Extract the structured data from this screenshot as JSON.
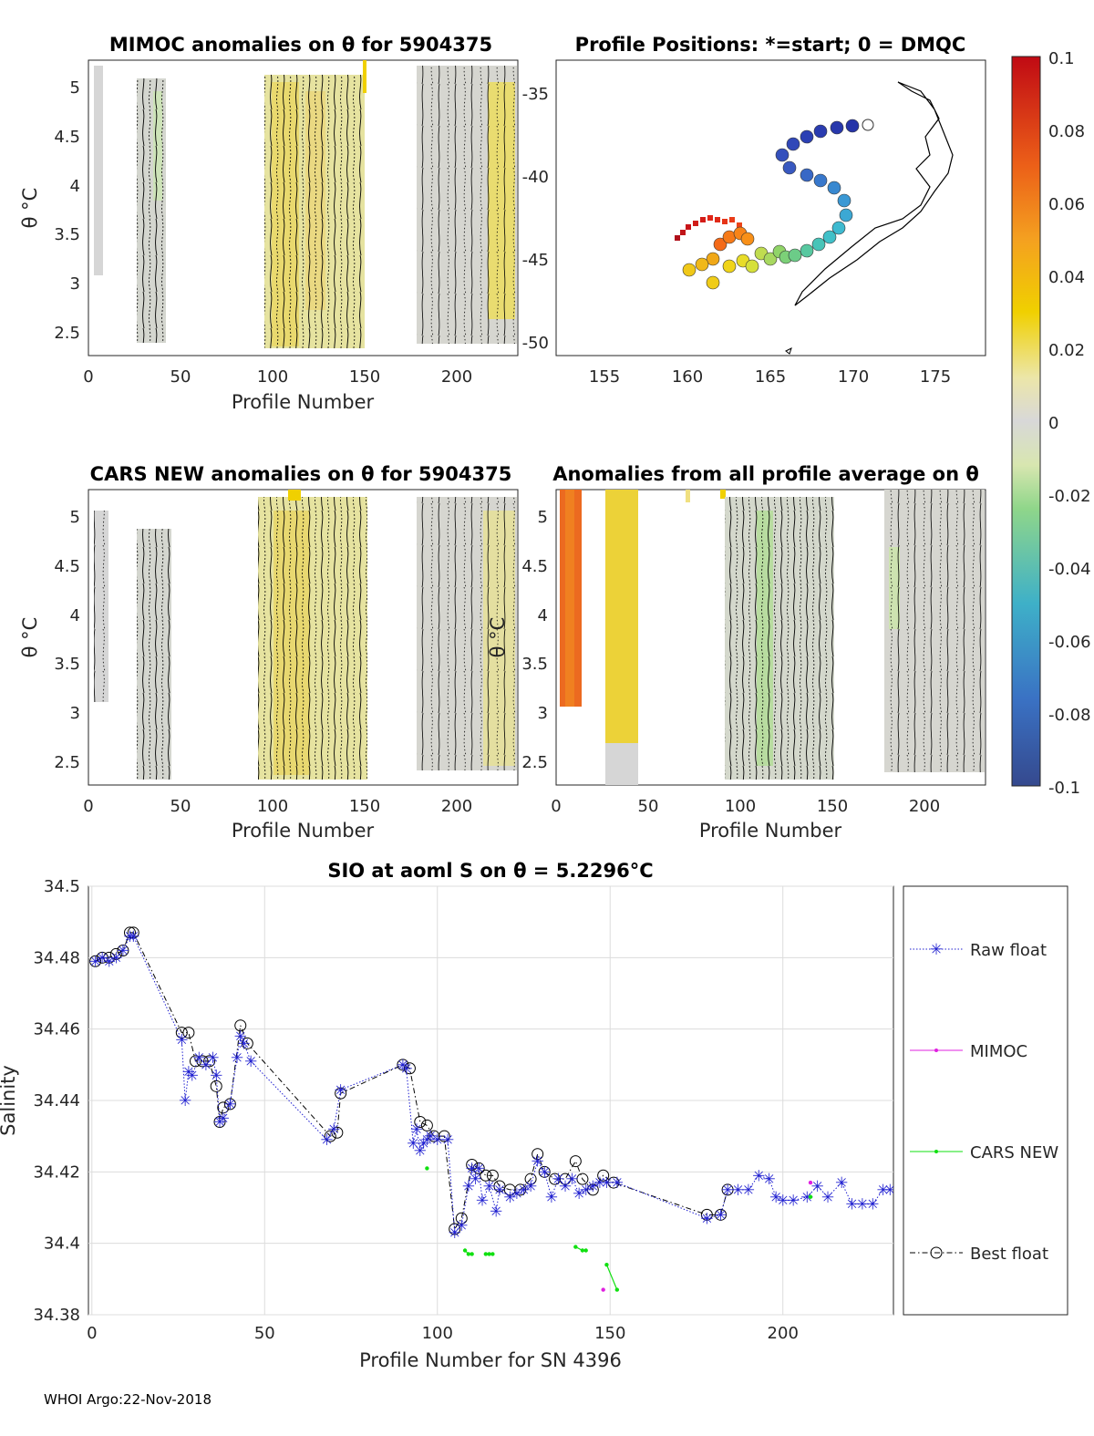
{
  "footer": "WHOI Argo:22-Nov-2018",
  "panels": {
    "mimoc": {
      "title": "MIMOC anomalies on θ  for 5904375",
      "ylabel": "θ °C",
      "xlabel": "Profile Number",
      "xticks": [
        "0",
        "50",
        "100",
        "150",
        "200"
      ],
      "yticks": [
        "5",
        "4.5",
        "4",
        "3.5",
        "3",
        "2.5"
      ]
    },
    "map": {
      "title": "Profile Positions: *=start; 0 = DMQC",
      "xticks": [
        "155",
        "160",
        "165",
        "170",
        "175"
      ],
      "yticks": [
        "-35",
        "-40",
        "-45",
        "-50"
      ]
    },
    "cars": {
      "title": "CARS NEW anomalies on θ for 5904375",
      "ylabel": "θ °C",
      "xlabel": "Profile Number",
      "xticks": [
        "0",
        "50",
        "100",
        "150",
        "200"
      ],
      "yticks": [
        "5",
        "4.5",
        "4",
        "3.5",
        "3",
        "2.5"
      ]
    },
    "avg": {
      "title": "Anomalies from all profile average on θ",
      "ylabel": "θ °C",
      "xlabel": "Profile Number",
      "xticks": [
        "0",
        "50",
        "100",
        "150",
        "200"
      ],
      "yticks": [
        "5",
        "4.5",
        "4",
        "3.5",
        "3",
        "2.5"
      ]
    },
    "colorbar": {
      "ticks": [
        "0.1",
        "0.08",
        "0.06",
        "0.04",
        "0.02",
        "0",
        "-0.02",
        "-0.04",
        "-0.06",
        "-0.08",
        "-0.1"
      ]
    }
  },
  "colors": {
    "raw": "#1f1fd0",
    "mimoc": "#e020e0",
    "cars": "#10e010",
    "best": "#000000"
  },
  "chart_data": {
    "type": "line",
    "title": "SIO at aoml S on θ = 5.2296°C",
    "xlabel": "Profile Number for SN 4396",
    "ylabel": "Salinity",
    "xlim": [
      -1,
      232
    ],
    "ylim": [
      34.38,
      34.5
    ],
    "xticks": [
      0,
      50,
      100,
      150,
      200
    ],
    "yticks": [
      34.38,
      34.4,
      34.42,
      34.44,
      34.46,
      34.48,
      34.5
    ],
    "ytick_labels": [
      "34.38",
      "34.4",
      "34.42",
      "34.44",
      "34.46",
      "34.48",
      "34.5"
    ],
    "legend": [
      "Raw float",
      "MIMOC",
      "CARS NEW",
      "Best float"
    ],
    "legend_position": "right, outside",
    "series": [
      {
        "name": "Raw float",
        "x": [
          1,
          3,
          5,
          7,
          9,
          11,
          12,
          26,
          27,
          28,
          29,
          31,
          33,
          35,
          36,
          37,
          38,
          40,
          42,
          43,
          44,
          46,
          68,
          70,
          72,
          90,
          91,
          93,
          94,
          95,
          96,
          97,
          98,
          100,
          103,
          105,
          107,
          109,
          110,
          111,
          112,
          113,
          115,
          117,
          118,
          121,
          123,
          125,
          127,
          129,
          131,
          133,
          135,
          137,
          139,
          141,
          143,
          145,
          147,
          149,
          152,
          178,
          182,
          184,
          187,
          190,
          193,
          196,
          198,
          200,
          203,
          207,
          210,
          213,
          217,
          220,
          223,
          226,
          229,
          231
        ],
        "values": [
          34.479,
          34.48,
          34.479,
          34.48,
          34.482,
          34.486,
          34.486,
          34.457,
          34.44,
          34.448,
          34.447,
          34.452,
          34.45,
          34.452,
          34.447,
          34.434,
          34.435,
          34.439,
          34.452,
          34.458,
          34.456,
          34.451,
          34.429,
          34.432,
          34.443,
          34.45,
          34.449,
          34.428,
          34.432,
          34.426,
          34.428,
          34.429,
          34.43,
          34.429,
          34.429,
          34.403,
          34.405,
          34.416,
          34.421,
          34.418,
          34.421,
          34.412,
          34.416,
          34.409,
          34.415,
          34.413,
          34.414,
          34.415,
          34.416,
          34.423,
          34.42,
          34.413,
          34.418,
          34.416,
          34.418,
          34.414,
          34.415,
          34.416,
          34.417,
          34.417,
          34.417,
          34.407,
          34.408,
          34.415,
          34.415,
          34.415,
          34.419,
          34.418,
          34.413,
          34.412,
          34.412,
          34.413,
          34.416,
          34.413,
          34.417,
          34.411,
          34.411,
          34.411,
          34.415,
          34.415
        ]
      },
      {
        "name": "MIMOC",
        "x": [
          148,
          208
        ],
        "values": [
          34.387,
          34.417
        ]
      },
      {
        "name": "CARS NEW",
        "segments": [
          {
            "x": [
              97
            ],
            "values": [
              34.421
            ]
          },
          {
            "x": [
              108,
              109,
              110
            ],
            "values": [
              34.398,
              34.397,
              34.397
            ]
          },
          {
            "x": [
              114,
              115,
              116
            ],
            "values": [
              34.397,
              34.397,
              34.397
            ]
          },
          {
            "x": [
              140,
              142,
              143
            ],
            "values": [
              34.399,
              34.398,
              34.398
            ]
          },
          {
            "x": [
              149,
              152
            ],
            "values": [
              34.394,
              34.387
            ]
          },
          {
            "x": [
              208
            ],
            "values": [
              34.413
            ]
          }
        ]
      },
      {
        "name": "Best float",
        "x": [
          1,
          3,
          5,
          7,
          9,
          11,
          12,
          26,
          28,
          30,
          32,
          34,
          36,
          37,
          38,
          40,
          43,
          45,
          69,
          71,
          72,
          90,
          92,
          95,
          97,
          99,
          102,
          105,
          107,
          110,
          112,
          114,
          116,
          118,
          121,
          124,
          127,
          129,
          131,
          134,
          137,
          140,
          142,
          145,
          148,
          151,
          178,
          182,
          184
        ],
        "values": [
          34.479,
          34.48,
          34.48,
          34.481,
          34.482,
          34.487,
          34.487,
          34.459,
          34.459,
          34.451,
          34.451,
          34.451,
          34.444,
          34.434,
          34.438,
          34.439,
          34.461,
          34.456,
          34.43,
          34.431,
          34.442,
          34.45,
          34.449,
          34.434,
          34.433,
          34.43,
          34.43,
          34.404,
          34.407,
          34.422,
          34.421,
          34.419,
          34.419,
          34.416,
          34.415,
          34.415,
          34.418,
          34.425,
          34.42,
          34.418,
          34.418,
          34.423,
          34.418,
          34.415,
          34.419,
          34.417,
          34.408,
          34.408,
          34.415
        ]
      }
    ]
  }
}
